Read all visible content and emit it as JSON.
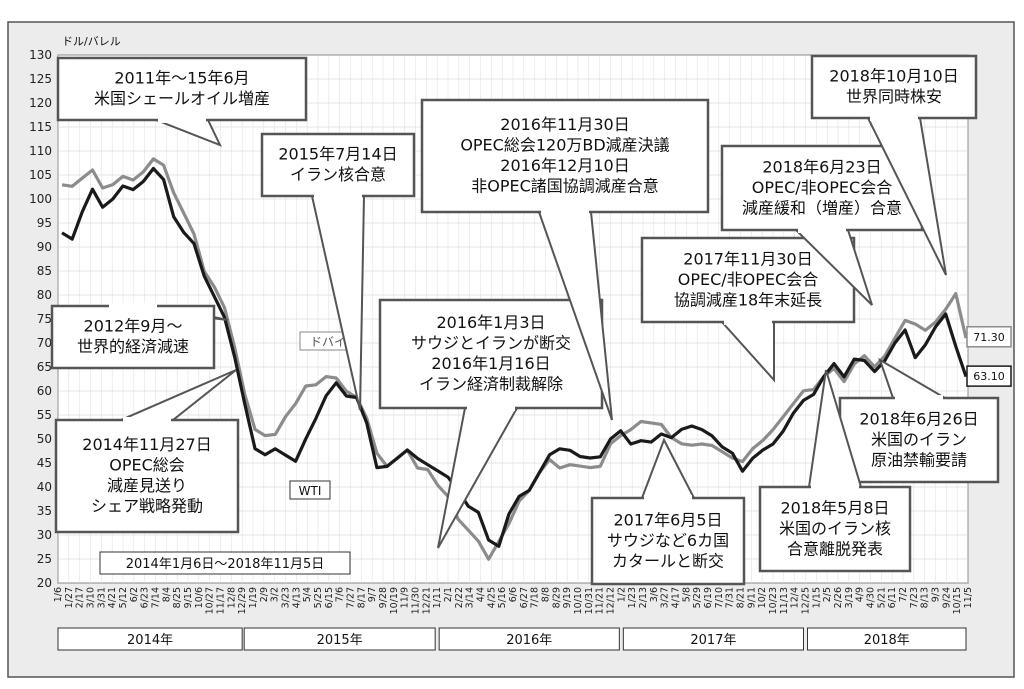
{
  "chart_data": {
    "type": "line",
    "ylabel": "ドル/バレル",
    "ylim": [
      20,
      130
    ],
    "yticks": [
      20,
      25,
      30,
      35,
      40,
      45,
      50,
      55,
      60,
      65,
      70,
      75,
      80,
      85,
      90,
      95,
      100,
      105,
      110,
      115,
      120,
      125,
      130
    ],
    "period_label": "2014年1月6日～2018年11月5日",
    "xticks": [
      "1/6",
      "1/27",
      "2/17",
      "3/10",
      "3/31",
      "4/21",
      "5/12",
      "6/2",
      "6/23",
      "7/14",
      "8/4",
      "8/25",
      "9/15",
      "10/6",
      "10/27",
      "11/17",
      "12/8",
      "12/29",
      "1/19",
      "2/9",
      "3/2",
      "3/23",
      "4/13",
      "5/4",
      "5/25",
      "6/15",
      "7/6",
      "7/27",
      "8/17",
      "9/7",
      "9/28",
      "10/19",
      "11/9",
      "11/30",
      "12/21",
      "1/11",
      "2/1",
      "2/22",
      "3/14",
      "4/4",
      "4/25",
      "5/16",
      "6/6",
      "6/27",
      "7/18",
      "8/8",
      "8/29",
      "9/19",
      "10/10",
      "10/31",
      "11/21",
      "12/12",
      "1/2",
      "1/23",
      "2/13",
      "3/6",
      "3/27",
      "4/17",
      "5/8",
      "5/29",
      "6/19",
      "7/10",
      "7/31",
      "8/21",
      "9/11",
      "10/2",
      "10/23",
      "11/13",
      "12/4",
      "12/25",
      "1/15",
      "2/5",
      "2/26",
      "3/19",
      "4/9",
      "4/30",
      "5/21",
      "6/11",
      "7/2",
      "7/23",
      "8/13",
      "9/3",
      "9/24",
      "10/15",
      "11/5"
    ],
    "years": [
      "2014年",
      "2015年",
      "2016年",
      "2017年",
      "2018年"
    ],
    "series": [
      {
        "name": "WTI",
        "color": "#1a1a1a",
        "end_label": "63.10",
        "values": [
          94,
          92,
          97,
          101,
          99,
          100,
          102,
          103,
          104,
          106,
          103,
          97,
          93,
          90,
          85,
          80,
          75,
          66,
          58,
          48,
          46,
          49,
          47,
          45,
          49,
          55,
          59,
          61,
          60,
          59,
          53,
          43,
          45,
          46,
          47,
          47,
          45,
          43,
          41,
          40,
          36,
          34,
          30,
          28,
          34,
          37,
          40,
          43,
          46,
          49,
          48,
          46,
          45,
          47,
          50,
          51,
          50,
          50,
          49,
          50,
          51,
          52,
          52,
          53,
          51,
          48,
          46,
          44,
          46,
          47,
          50,
          52,
          55,
          57,
          60,
          63,
          65,
          64,
          67,
          66,
          63,
          67,
          70,
          72,
          68,
          70,
          73,
          75,
          70,
          63
        ]
      },
      {
        "name": "ドバイ",
        "color": "#8c8c8c",
        "end_label": "71.30",
        "values": [
          104,
          103,
          104,
          105,
          103,
          103,
          104,
          105,
          106,
          108,
          106,
          102,
          97,
          92,
          86,
          82,
          77,
          68,
          60,
          52,
          50,
          52,
          55,
          57,
          60,
          62,
          63,
          62,
          61,
          59,
          54,
          46,
          45,
          46,
          47,
          45,
          44,
          40,
          37,
          34,
          31,
          28,
          26,
          29,
          32,
          36,
          40,
          43,
          45,
          45,
          45,
          44,
          43,
          45,
          49,
          50,
          53,
          54,
          53,
          52,
          51,
          49,
          48,
          50,
          49,
          47,
          45,
          46,
          48,
          49,
          53,
          55,
          57,
          59,
          61,
          63,
          64,
          63,
          66,
          67,
          64,
          68,
          71,
          74,
          75,
          73,
          74,
          76,
          81,
          71
        ]
      }
    ],
    "annotations": [
      {
        "lines": [
          "2011年～15年6月",
          "米国シェールオイル増産"
        ]
      },
      {
        "lines": [
          "2012年9月～",
          "世界的経済減速"
        ]
      },
      {
        "lines": [
          "2014年11月27日",
          "OPEC総会",
          "減産見送り",
          "シェア戦略発動"
        ]
      },
      {
        "lines": [
          "2015年7月14日",
          "イラン核合意"
        ]
      },
      {
        "lines": [
          "2016年1月3日",
          "サウジとイランが断交",
          "2016年1月16日",
          "イラン経済制裁解除"
        ]
      },
      {
        "lines": [
          "2016年11月30日",
          "OPEC総会120万BD減産決議",
          "2016年12月10日",
          "非OPEC諸国協調減産合意"
        ]
      },
      {
        "lines": [
          "2017年6月5日",
          "サウジなど6カ国",
          "カタールと断交"
        ]
      },
      {
        "lines": [
          "2017年11月30日",
          "OPEC/非OPEC会合",
          "協調減産18年末延長"
        ]
      },
      {
        "lines": [
          "2018年6月23日",
          "OPEC/非OPEC会合",
          "減産緩和（増産）合意"
        ]
      },
      {
        "lines": [
          "2018年10月10日",
          "世界同時株安"
        ]
      },
      {
        "lines": [
          "2018年6月26日",
          "米国のイラン",
          "原油禁輸要請"
        ]
      },
      {
        "lines": [
          "2018年5月8日",
          "米国のイラン核",
          "合意離脱発表"
        ]
      }
    ]
  }
}
